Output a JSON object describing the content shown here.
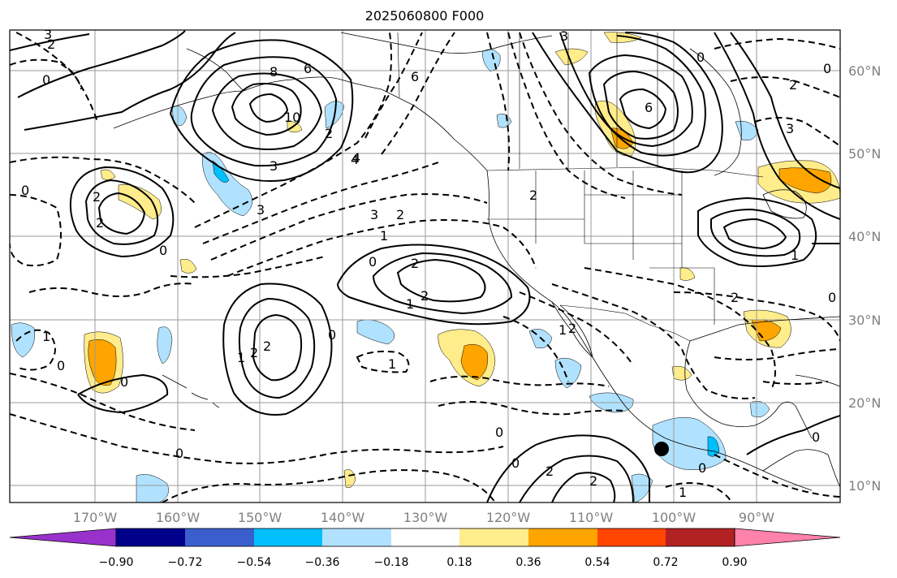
{
  "title": "2025060800 F000",
  "lat_labels": [
    "60°N",
    "50°N",
    "40°N",
    "30°N",
    "20°N",
    "10°N"
  ],
  "lon_labels": [
    "170°W",
    "160°W",
    "150°W",
    "140°W",
    "130°W",
    "120°W",
    "110°W",
    "100°W",
    "90°W"
  ],
  "colorbar": {
    "ticks": [
      "−0.90",
      "−0.72",
      "−0.54",
      "−0.36",
      "−0.18",
      "0.18",
      "0.36",
      "0.54",
      "0.72",
      "0.90"
    ],
    "colors": [
      "#9932cc",
      "#00008b",
      "#3a5fcd",
      "#00bfff",
      "#b0e2ff",
      "#ffffff",
      "#ffec8b",
      "#ffa500",
      "#ff4500",
      "#b22222",
      "#ff82ab"
    ]
  },
  "contour_labels": [
    "3",
    "2",
    "0",
    "8",
    "6",
    "10",
    "4",
    "2",
    "3",
    "6",
    "3",
    "6",
    "0",
    "2",
    "0",
    "3",
    "2",
    "4",
    "3",
    "2",
    "1",
    "0",
    "2",
    "2",
    "1",
    "2",
    "0",
    "2",
    "0",
    "3",
    "1",
    "0",
    "1",
    "2",
    "2",
    "0",
    "1",
    "2",
    "1",
    "0",
    "0",
    "0",
    "0",
    "2",
    "2",
    "1",
    "0",
    "0",
    "1",
    "2",
    "0"
  ]
}
